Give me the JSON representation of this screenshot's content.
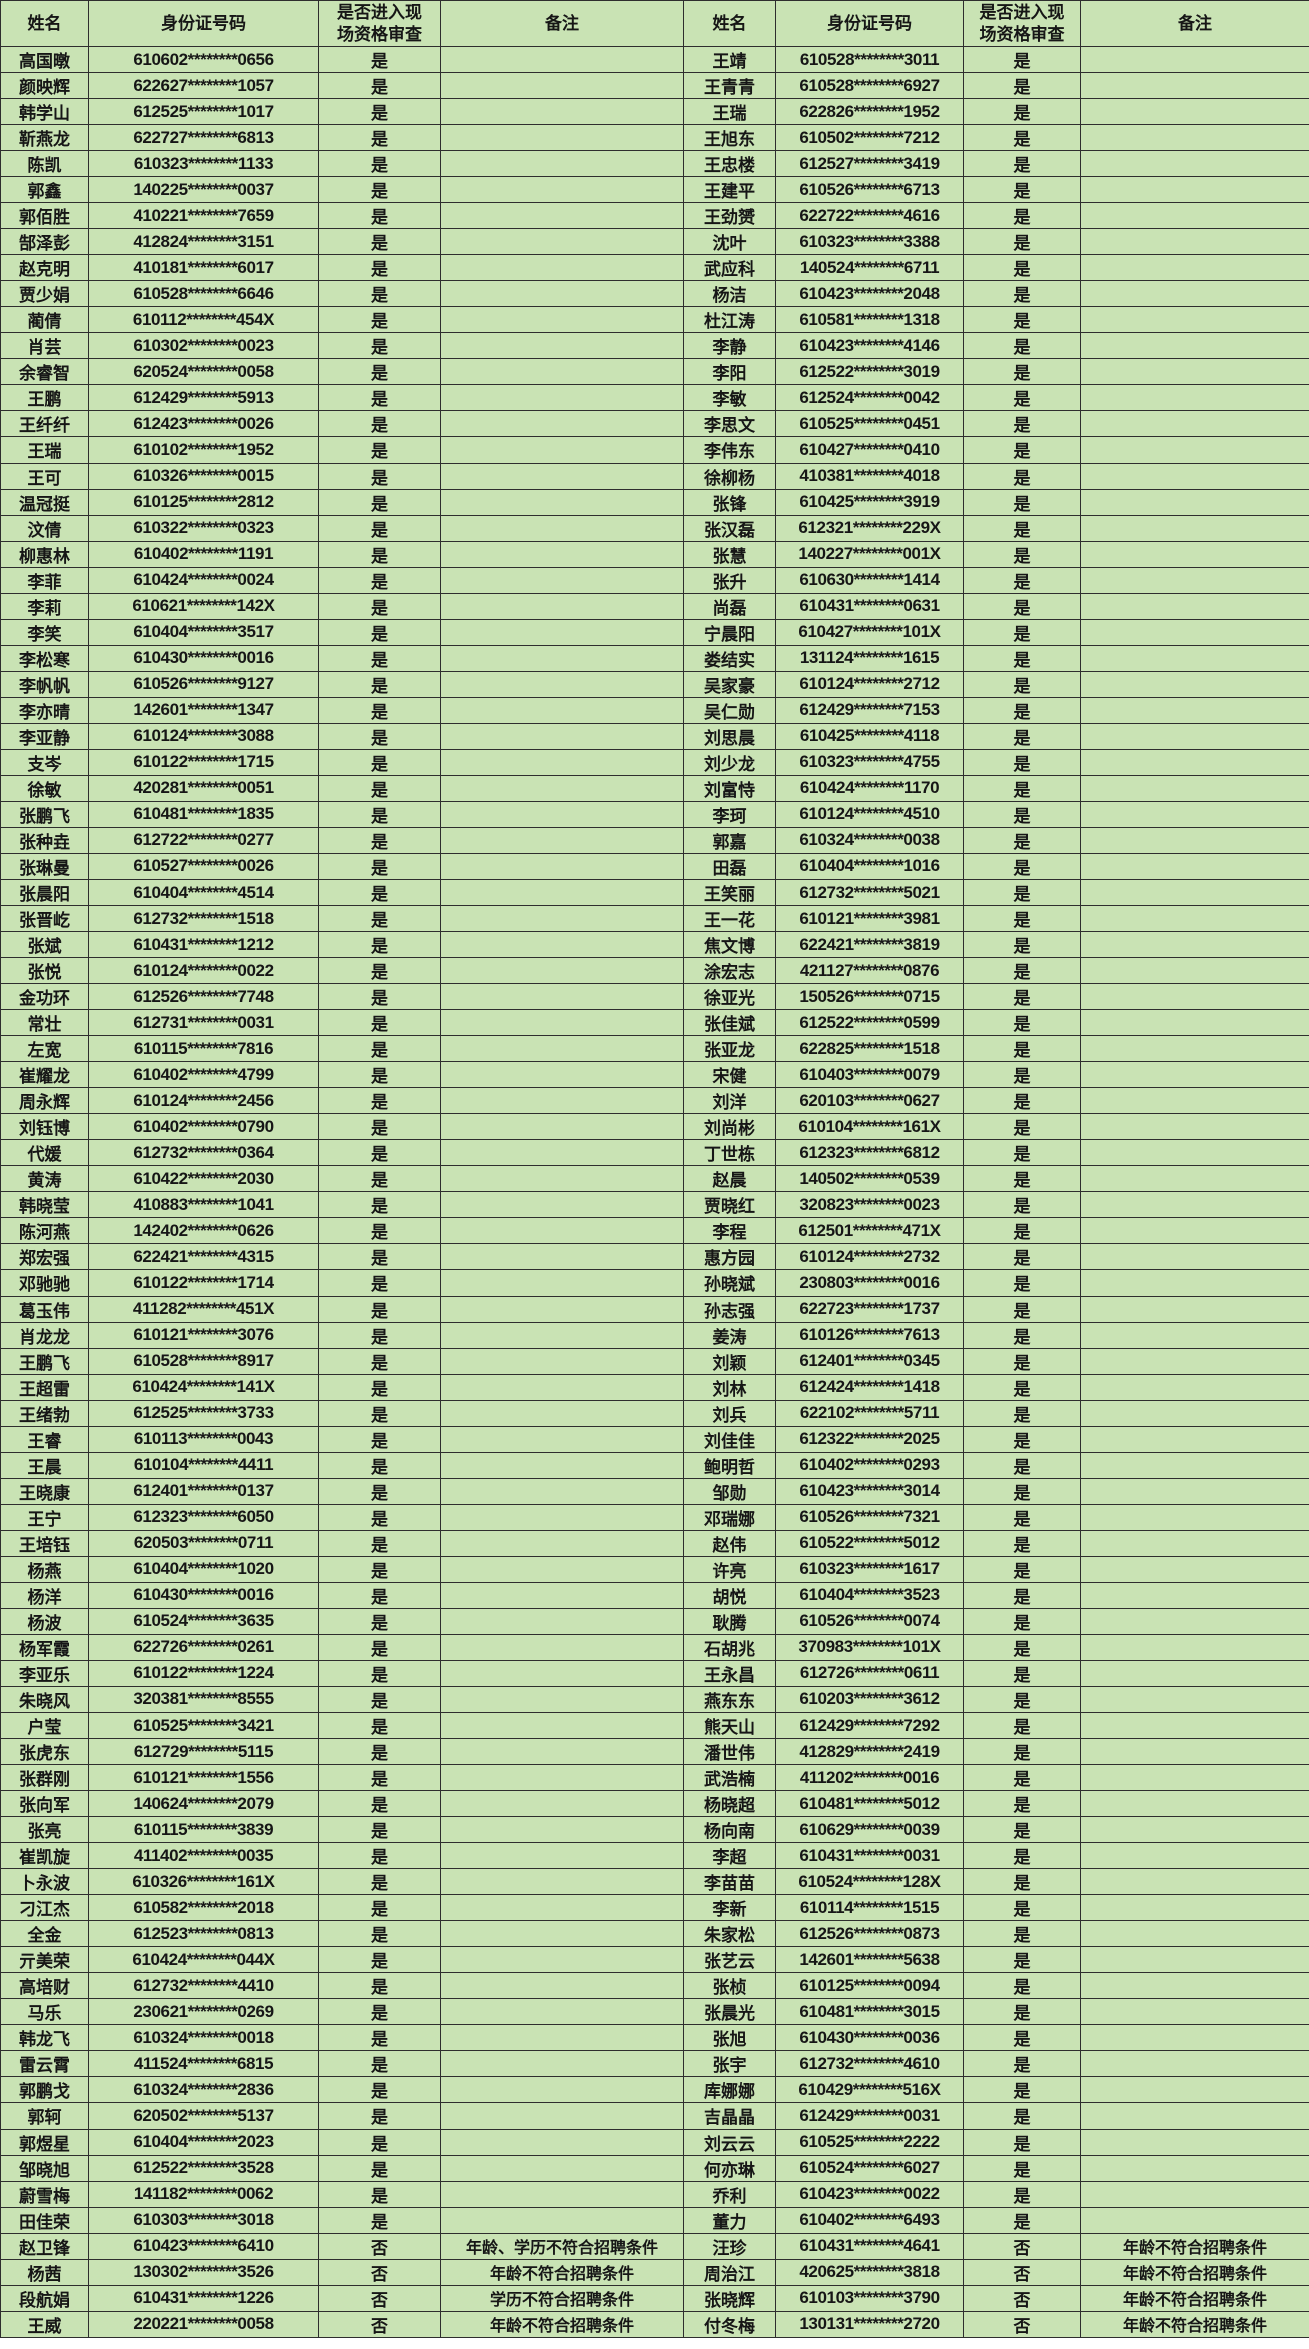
{
  "header": {
    "name": "姓名",
    "id": "身份证号码",
    "review": "是否进入现场资格审查",
    "remark": "备注"
  },
  "review_values": {
    "yes": "是",
    "no": "否"
  },
  "colors": {
    "cell_bg": "#c9e3b4",
    "grid_border": "#2e2e2e",
    "text": "#161616"
  },
  "left_rows": [
    {
      "name": "高国暾",
      "id": "610602********0656",
      "review": "是",
      "remark": ""
    },
    {
      "name": "颜映辉",
      "id": "622627********1057",
      "review": "是",
      "remark": ""
    },
    {
      "name": "韩学山",
      "id": "612525********1017",
      "review": "是",
      "remark": ""
    },
    {
      "name": "靳燕龙",
      "id": "622727********6813",
      "review": "是",
      "remark": ""
    },
    {
      "name": "陈凯",
      "id": "610323********1133",
      "review": "是",
      "remark": ""
    },
    {
      "name": "郭鑫",
      "id": "140225********0037",
      "review": "是",
      "remark": ""
    },
    {
      "name": "郭佰胜",
      "id": "410221********7659",
      "review": "是",
      "remark": ""
    },
    {
      "name": "郜泽彭",
      "id": "412824********3151",
      "review": "是",
      "remark": ""
    },
    {
      "name": "赵克明",
      "id": "410181********6017",
      "review": "是",
      "remark": ""
    },
    {
      "name": "贾少娟",
      "id": "610528********6646",
      "review": "是",
      "remark": ""
    },
    {
      "name": "蔺倩",
      "id": "610112********454X",
      "review": "是",
      "remark": ""
    },
    {
      "name": "肖芸",
      "id": "610302********0023",
      "review": "是",
      "remark": ""
    },
    {
      "name": "余睿智",
      "id": "620524********0058",
      "review": "是",
      "remark": ""
    },
    {
      "name": "王鹏",
      "id": "612429********5913",
      "review": "是",
      "remark": ""
    },
    {
      "name": "王纤纤",
      "id": "612423********0026",
      "review": "是",
      "remark": ""
    },
    {
      "name": "王瑞",
      "id": "610102********1952",
      "review": "是",
      "remark": ""
    },
    {
      "name": "王可",
      "id": "610326********0015",
      "review": "是",
      "remark": ""
    },
    {
      "name": "温冠挺",
      "id": "610125********2812",
      "review": "是",
      "remark": ""
    },
    {
      "name": "汶倩",
      "id": "610322********0323",
      "review": "是",
      "remark": ""
    },
    {
      "name": "柳惠林",
      "id": "610402********1191",
      "review": "是",
      "remark": ""
    },
    {
      "name": "李菲",
      "id": "610424********0024",
      "review": "是",
      "remark": ""
    },
    {
      "name": "李莉",
      "id": "610621********142X",
      "review": "是",
      "remark": ""
    },
    {
      "name": "李笑",
      "id": "610404********3517",
      "review": "是",
      "remark": ""
    },
    {
      "name": "李松寒",
      "id": "610430********0016",
      "review": "是",
      "remark": ""
    },
    {
      "name": "李帆帆",
      "id": "610526********9127",
      "review": "是",
      "remark": ""
    },
    {
      "name": "李亦晴",
      "id": "142601********1347",
      "review": "是",
      "remark": ""
    },
    {
      "name": "李亚静",
      "id": "610124********3088",
      "review": "是",
      "remark": ""
    },
    {
      "name": "支岑",
      "id": "610122********1715",
      "review": "是",
      "remark": ""
    },
    {
      "name": "徐敏",
      "id": "420281********0051",
      "review": "是",
      "remark": ""
    },
    {
      "name": "张鹏飞",
      "id": "610481********1835",
      "review": "是",
      "remark": ""
    },
    {
      "name": "张种垚",
      "id": "612722********0277",
      "review": "是",
      "remark": ""
    },
    {
      "name": "张琳曼",
      "id": "610527********0026",
      "review": "是",
      "remark": ""
    },
    {
      "name": "张晨阳",
      "id": "610404********4514",
      "review": "是",
      "remark": ""
    },
    {
      "name": "张晋屹",
      "id": "612732********1518",
      "review": "是",
      "remark": ""
    },
    {
      "name": "张斌",
      "id": "610431********1212",
      "review": "是",
      "remark": ""
    },
    {
      "name": "张悦",
      "id": "610124********0022",
      "review": "是",
      "remark": ""
    },
    {
      "name": "金功环",
      "id": "612526********7748",
      "review": "是",
      "remark": ""
    },
    {
      "name": "常壮",
      "id": "612731********0031",
      "review": "是",
      "remark": ""
    },
    {
      "name": "左宽",
      "id": "610115********7816",
      "review": "是",
      "remark": ""
    },
    {
      "name": "崔耀龙",
      "id": "610402********4799",
      "review": "是",
      "remark": ""
    },
    {
      "name": "周永辉",
      "id": "610124********2456",
      "review": "是",
      "remark": ""
    },
    {
      "name": "刘钰博",
      "id": "610402********0790",
      "review": "是",
      "remark": ""
    },
    {
      "name": "代媛",
      "id": "612732********0364",
      "review": "是",
      "remark": ""
    },
    {
      "name": "黄涛",
      "id": "610422********2030",
      "review": "是",
      "remark": ""
    },
    {
      "name": "韩晓莹",
      "id": "410883********1041",
      "review": "是",
      "remark": ""
    },
    {
      "name": "陈河燕",
      "id": "142402********0626",
      "review": "是",
      "remark": ""
    },
    {
      "name": "郑宏强",
      "id": "622421********4315",
      "review": "是",
      "remark": ""
    },
    {
      "name": "邓驰驰",
      "id": "610122********1714",
      "review": "是",
      "remark": ""
    },
    {
      "name": "葛玉伟",
      "id": "411282********451X",
      "review": "是",
      "remark": ""
    },
    {
      "name": "肖龙龙",
      "id": "610121********3076",
      "review": "是",
      "remark": ""
    },
    {
      "name": "王鹏飞",
      "id": "610528********8917",
      "review": "是",
      "remark": ""
    },
    {
      "name": "王超雷",
      "id": "610424********141X",
      "review": "是",
      "remark": ""
    },
    {
      "name": "王绪勃",
      "id": "612525********3733",
      "review": "是",
      "remark": ""
    },
    {
      "name": "王睿",
      "id": "610113********0043",
      "review": "是",
      "remark": ""
    },
    {
      "name": "王晨",
      "id": "610104********4411",
      "review": "是",
      "remark": ""
    },
    {
      "name": "王晓康",
      "id": "612401********0137",
      "review": "是",
      "remark": ""
    },
    {
      "name": "王宁",
      "id": "612323********6050",
      "review": "是",
      "remark": ""
    },
    {
      "name": "王培钰",
      "id": "620503********0711",
      "review": "是",
      "remark": ""
    },
    {
      "name": "杨燕",
      "id": "610404********1020",
      "review": "是",
      "remark": ""
    },
    {
      "name": "杨洋",
      "id": "610430********0016",
      "review": "是",
      "remark": ""
    },
    {
      "name": "杨波",
      "id": "610524********3635",
      "review": "是",
      "remark": ""
    },
    {
      "name": "杨军霞",
      "id": "622726********0261",
      "review": "是",
      "remark": ""
    },
    {
      "name": "李亚乐",
      "id": "610122********1224",
      "review": "是",
      "remark": ""
    },
    {
      "name": "朱晓风",
      "id": "320381********8555",
      "review": "是",
      "remark": ""
    },
    {
      "name": "户莹",
      "id": "610525********3421",
      "review": "是",
      "remark": ""
    },
    {
      "name": "张虎东",
      "id": "612729********5115",
      "review": "是",
      "remark": ""
    },
    {
      "name": "张群刚",
      "id": "610121********1556",
      "review": "是",
      "remark": ""
    },
    {
      "name": "张向军",
      "id": "140624********2079",
      "review": "是",
      "remark": ""
    },
    {
      "name": "张亮",
      "id": "610115********3839",
      "review": "是",
      "remark": ""
    },
    {
      "name": "崔凯旋",
      "id": "411402********0035",
      "review": "是",
      "remark": ""
    },
    {
      "name": "卜永波",
      "id": "610326********161X",
      "review": "是",
      "remark": ""
    },
    {
      "name": "刁江杰",
      "id": "610582********2018",
      "review": "是",
      "remark": ""
    },
    {
      "name": "全金",
      "id": "612523********0813",
      "review": "是",
      "remark": ""
    },
    {
      "name": "亓美荣",
      "id": "610424********044X",
      "review": "是",
      "remark": ""
    },
    {
      "name": "高培财",
      "id": "612732********4410",
      "review": "是",
      "remark": ""
    },
    {
      "name": "马乐",
      "id": "230621********0269",
      "review": "是",
      "remark": ""
    },
    {
      "name": "韩龙飞",
      "id": "610324********0018",
      "review": "是",
      "remark": ""
    },
    {
      "name": "雷云霄",
      "id": "411524********6815",
      "review": "是",
      "remark": ""
    },
    {
      "name": "郭鹏戈",
      "id": "610324********2836",
      "review": "是",
      "remark": ""
    },
    {
      "name": "郭轲",
      "id": "620502********5137",
      "review": "是",
      "remark": ""
    },
    {
      "name": "郭煜星",
      "id": "610404********2023",
      "review": "是",
      "remark": ""
    },
    {
      "name": "邹晓旭",
      "id": "612522********3528",
      "review": "是",
      "remark": ""
    },
    {
      "name": "蔚雪梅",
      "id": "141182********0062",
      "review": "是",
      "remark": ""
    },
    {
      "name": "田佳荣",
      "id": "610303********3018",
      "review": "是",
      "remark": ""
    },
    {
      "name": "赵卫锋",
      "id": "610423********6410",
      "review": "否",
      "remark": "年龄、学历不符合招聘条件"
    },
    {
      "name": "杨茜",
      "id": "130302********3526",
      "review": "否",
      "remark": "年龄不符合招聘条件"
    },
    {
      "name": "段航娟",
      "id": "610431********1226",
      "review": "否",
      "remark": "学历不符合招聘条件"
    },
    {
      "name": "王威",
      "id": "220221********0058",
      "review": "否",
      "remark": "年龄不符合招聘条件"
    }
  ],
  "right_rows": [
    {
      "name": "王靖",
      "id": "610528********3011",
      "review": "是",
      "remark": ""
    },
    {
      "name": "王青青",
      "id": "610528********6927",
      "review": "是",
      "remark": ""
    },
    {
      "name": "王瑞",
      "id": "622826********1952",
      "review": "是",
      "remark": ""
    },
    {
      "name": "王旭东",
      "id": "610502********7212",
      "review": "是",
      "remark": ""
    },
    {
      "name": "王忠楼",
      "id": "612527********3419",
      "review": "是",
      "remark": ""
    },
    {
      "name": "王建平",
      "id": "610526********6713",
      "review": "是",
      "remark": ""
    },
    {
      "name": "王劲赟",
      "id": "622722********4616",
      "review": "是",
      "remark": ""
    },
    {
      "name": "沈叶",
      "id": "610323********3388",
      "review": "是",
      "remark": ""
    },
    {
      "name": "武应科",
      "id": "140524********6711",
      "review": "是",
      "remark": ""
    },
    {
      "name": "杨洁",
      "id": "610423********2048",
      "review": "是",
      "remark": ""
    },
    {
      "name": "杜江涛",
      "id": "610581********1318",
      "review": "是",
      "remark": ""
    },
    {
      "name": "李静",
      "id": "610423********4146",
      "review": "是",
      "remark": ""
    },
    {
      "name": "李阳",
      "id": "612522********3019",
      "review": "是",
      "remark": ""
    },
    {
      "name": "李敏",
      "id": "612524********0042",
      "review": "是",
      "remark": ""
    },
    {
      "name": "李思文",
      "id": "610525********0451",
      "review": "是",
      "remark": ""
    },
    {
      "name": "李伟东",
      "id": "610427********0410",
      "review": "是",
      "remark": ""
    },
    {
      "name": "徐柳杨",
      "id": "410381********4018",
      "review": "是",
      "remark": ""
    },
    {
      "name": "张锋",
      "id": "610425********3919",
      "review": "是",
      "remark": ""
    },
    {
      "name": "张汉磊",
      "id": "612321********229X",
      "review": "是",
      "remark": ""
    },
    {
      "name": "张慧",
      "id": "140227********001X",
      "review": "是",
      "remark": ""
    },
    {
      "name": "张升",
      "id": "610630********1414",
      "review": "是",
      "remark": ""
    },
    {
      "name": "尚磊",
      "id": "610431********0631",
      "review": "是",
      "remark": ""
    },
    {
      "name": "宁晨阳",
      "id": "610427********101X",
      "review": "是",
      "remark": ""
    },
    {
      "name": "娄结实",
      "id": "131124********1615",
      "review": "是",
      "remark": ""
    },
    {
      "name": "吴家豪",
      "id": "610124********2712",
      "review": "是",
      "remark": ""
    },
    {
      "name": "吴仁勋",
      "id": "612429********7153",
      "review": "是",
      "remark": ""
    },
    {
      "name": "刘思晨",
      "id": "610425********4118",
      "review": "是",
      "remark": ""
    },
    {
      "name": "刘少龙",
      "id": "610323********4755",
      "review": "是",
      "remark": ""
    },
    {
      "name": "刘富恃",
      "id": "610424********1170",
      "review": "是",
      "remark": ""
    },
    {
      "name": "李珂",
      "id": "610124********4510",
      "review": "是",
      "remark": ""
    },
    {
      "name": "郭嘉",
      "id": "610324********0038",
      "review": "是",
      "remark": ""
    },
    {
      "name": "田磊",
      "id": "610404********1016",
      "review": "是",
      "remark": ""
    },
    {
      "name": "王笑丽",
      "id": "612732********5021",
      "review": "是",
      "remark": ""
    },
    {
      "name": "王一花",
      "id": "610121********3981",
      "review": "是",
      "remark": ""
    },
    {
      "name": "焦文博",
      "id": "622421********3819",
      "review": "是",
      "remark": ""
    },
    {
      "name": "涂宏志",
      "id": "421127********0876",
      "review": "是",
      "remark": ""
    },
    {
      "name": "徐亚光",
      "id": "150526********0715",
      "review": "是",
      "remark": ""
    },
    {
      "name": "张佳斌",
      "id": "612522********0599",
      "review": "是",
      "remark": ""
    },
    {
      "name": "张亚龙",
      "id": "622825********1518",
      "review": "是",
      "remark": ""
    },
    {
      "name": "宋健",
      "id": "610403********0079",
      "review": "是",
      "remark": ""
    },
    {
      "name": "刘洋",
      "id": "620103********0627",
      "review": "是",
      "remark": ""
    },
    {
      "name": "刘尚彬",
      "id": "610104********161X",
      "review": "是",
      "remark": ""
    },
    {
      "name": "丁世栋",
      "id": "612323********6812",
      "review": "是",
      "remark": ""
    },
    {
      "name": "赵晨",
      "id": "140502********0539",
      "review": "是",
      "remark": ""
    },
    {
      "name": "贾晓红",
      "id": "320823********0023",
      "review": "是",
      "remark": ""
    },
    {
      "name": "李程",
      "id": "612501********471X",
      "review": "是",
      "remark": ""
    },
    {
      "name": "惠方园",
      "id": "610124********2732",
      "review": "是",
      "remark": ""
    },
    {
      "name": "孙晓斌",
      "id": "230803********0016",
      "review": "是",
      "remark": ""
    },
    {
      "name": "孙志强",
      "id": "622723********1737",
      "review": "是",
      "remark": ""
    },
    {
      "name": "姜涛",
      "id": "610126********7613",
      "review": "是",
      "remark": ""
    },
    {
      "name": "刘颖",
      "id": "612401********0345",
      "review": "是",
      "remark": ""
    },
    {
      "name": "刘林",
      "id": "612424********1418",
      "review": "是",
      "remark": ""
    },
    {
      "name": "刘兵",
      "id": "622102********5711",
      "review": "是",
      "remark": ""
    },
    {
      "name": "刘佳佳",
      "id": "612322********2025",
      "review": "是",
      "remark": ""
    },
    {
      "name": "鲍明哲",
      "id": "610402********0293",
      "review": "是",
      "remark": ""
    },
    {
      "name": "邹勋",
      "id": "610423********3014",
      "review": "是",
      "remark": ""
    },
    {
      "name": "邓瑞娜",
      "id": "610526********7321",
      "review": "是",
      "remark": ""
    },
    {
      "name": "赵伟",
      "id": "610522********5012",
      "review": "是",
      "remark": ""
    },
    {
      "name": "许亮",
      "id": "610323********1617",
      "review": "是",
      "remark": ""
    },
    {
      "name": "胡悦",
      "id": "610404********3523",
      "review": "是",
      "remark": ""
    },
    {
      "name": "耿腾",
      "id": "610526********0074",
      "review": "是",
      "remark": ""
    },
    {
      "name": "石胡兆",
      "id": "370983********101X",
      "review": "是",
      "remark": ""
    },
    {
      "name": "王永昌",
      "id": "612726********0611",
      "review": "是",
      "remark": ""
    },
    {
      "name": "燕东东",
      "id": "610203********3612",
      "review": "是",
      "remark": ""
    },
    {
      "name": "熊天山",
      "id": "612429********7292",
      "review": "是",
      "remark": ""
    },
    {
      "name": "潘世伟",
      "id": "412829********2419",
      "review": "是",
      "remark": ""
    },
    {
      "name": "武浩楠",
      "id": "411202********0016",
      "review": "是",
      "remark": ""
    },
    {
      "name": "杨晓超",
      "id": "610481********5012",
      "review": "是",
      "remark": ""
    },
    {
      "name": "杨向南",
      "id": "610629********0039",
      "review": "是",
      "remark": ""
    },
    {
      "name": "李超",
      "id": "610431********0031",
      "review": "是",
      "remark": ""
    },
    {
      "name": "李苗苗",
      "id": "610524********128X",
      "review": "是",
      "remark": ""
    },
    {
      "name": "李新",
      "id": "610114********1515",
      "review": "是",
      "remark": ""
    },
    {
      "name": "朱家松",
      "id": "612526********0873",
      "review": "是",
      "remark": ""
    },
    {
      "name": "张艺云",
      "id": "142601********5638",
      "review": "是",
      "remark": ""
    },
    {
      "name": "张桢",
      "id": "610125********0094",
      "review": "是",
      "remark": ""
    },
    {
      "name": "张晨光",
      "id": "610481********3015",
      "review": "是",
      "remark": ""
    },
    {
      "name": "张旭",
      "id": "610430********0036",
      "review": "是",
      "remark": ""
    },
    {
      "name": "张宇",
      "id": "612732********4610",
      "review": "是",
      "remark": ""
    },
    {
      "name": "库娜娜",
      "id": "610429********516X",
      "review": "是",
      "remark": ""
    },
    {
      "name": "吉晶晶",
      "id": "612429********0031",
      "review": "是",
      "remark": ""
    },
    {
      "name": "刘云云",
      "id": "610525********2222",
      "review": "是",
      "remark": ""
    },
    {
      "name": "何亦琳",
      "id": "610524********6027",
      "review": "是",
      "remark": ""
    },
    {
      "name": "乔利",
      "id": "610423********0022",
      "review": "是",
      "remark": ""
    },
    {
      "name": "董力",
      "id": "610402********6493",
      "review": "是",
      "remark": ""
    },
    {
      "name": "汪珍",
      "id": "610431********4641",
      "review": "否",
      "remark": "年龄不符合招聘条件"
    },
    {
      "name": "周治江",
      "id": "420625********3818",
      "review": "否",
      "remark": "年龄不符合招聘条件"
    },
    {
      "name": "张晓辉",
      "id": "610103********3790",
      "review": "否",
      "remark": "年龄不符合招聘条件"
    },
    {
      "name": "付冬梅",
      "id": "130131********2720",
      "review": "否",
      "remark": "年龄不符合招聘条件"
    }
  ]
}
